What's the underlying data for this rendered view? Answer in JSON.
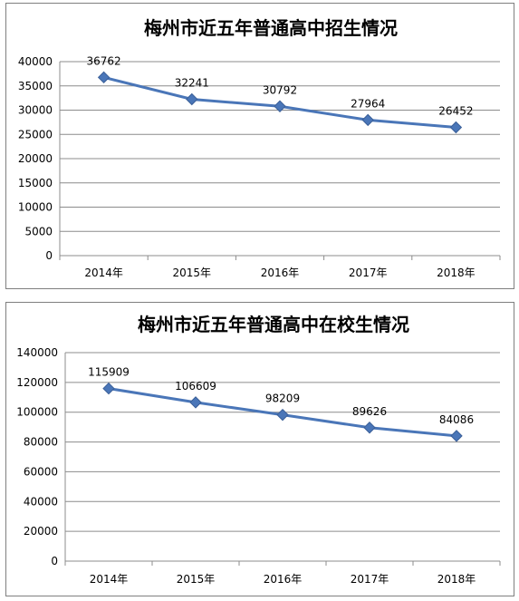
{
  "chart_data": [
    {
      "type": "line",
      "title": "梅州市近五年普通高中招生情况",
      "categories": [
        "2014年",
        "2015年",
        "2016年",
        "2017年",
        "2018年"
      ],
      "values": [
        36762,
        32241,
        30792,
        27964,
        26452
      ],
      "value_labels": [
        "36762",
        "32241",
        "30792",
        "27964",
        "26452"
      ],
      "ylim": [
        0,
        40000
      ],
      "yticks": [
        0,
        5000,
        10000,
        15000,
        20000,
        25000,
        30000,
        35000,
        40000
      ],
      "ytick_labels": [
        "0",
        "5000",
        "10000",
        "15000",
        "20000",
        "25000",
        "30000",
        "35000",
        "40000"
      ],
      "grid": true,
      "color": "#4a76b8"
    },
    {
      "type": "line",
      "title": "梅州市近五年普通高中在校生情况",
      "categories": [
        "2014年",
        "2015年",
        "2016年",
        "2017年",
        "2018年"
      ],
      "values": [
        115909,
        106609,
        98209,
        89626,
        84086
      ],
      "value_labels": [
        "115909",
        "106609",
        "98209",
        "89626",
        "84086"
      ],
      "ylim": [
        0,
        140000
      ],
      "yticks": [
        0,
        20000,
        40000,
        60000,
        80000,
        100000,
        120000,
        140000
      ],
      "ytick_labels": [
        "0",
        "20000",
        "40000",
        "60000",
        "80000",
        "100000",
        "120000",
        "140000"
      ],
      "grid": true,
      "color": "#4a76b8"
    }
  ]
}
